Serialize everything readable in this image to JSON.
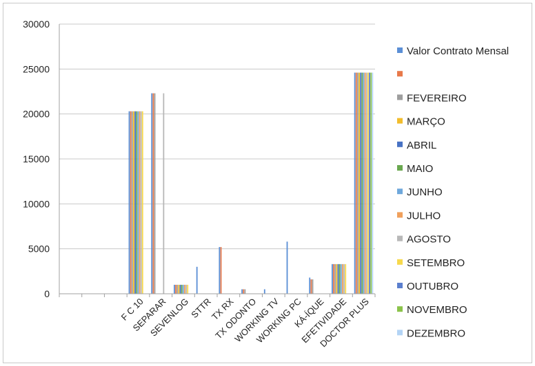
{
  "chart_data": {
    "type": "bar",
    "title": "",
    "xlabel": "",
    "ylabel": "",
    "ylim": [
      0,
      30000
    ],
    "yticks": [
      0,
      5000,
      10000,
      15000,
      20000,
      25000,
      30000
    ],
    "grid": true,
    "legend_position": "right",
    "categories": [
      "",
      "",
      "",
      "F C 10",
      "SEPARAR",
      "SEVENLOG",
      "STTR",
      "TX RX",
      "TX ODONTO",
      "WORKING TV",
      "WORKING PC",
      "KÁ-ÍQUE",
      "EFETIVIDADE",
      "DOCTOR PLUS"
    ],
    "series": [
      {
        "name": "Valor Contrato Mensal",
        "color": "#5b8fd6",
        "values": [
          0,
          0,
          0,
          20300,
          22300,
          1000,
          3000,
          5200,
          500,
          500,
          5800,
          1800,
          3300,
          24600
        ]
      },
      {
        "name": "",
        "color": "#e8794a",
        "values": [
          0,
          0,
          0,
          20300,
          22300,
          1000,
          0,
          5200,
          500,
          0,
          0,
          1600,
          3300,
          24600
        ]
      },
      {
        "name": "FEVEREIRO",
        "color": "#9e9e9e",
        "values": [
          0,
          0,
          0,
          20300,
          22300,
          1000,
          0,
          0,
          500,
          0,
          0,
          1600,
          3300,
          24600
        ]
      },
      {
        "name": "MARÇO",
        "color": "#f2bd2c",
        "values": [
          0,
          0,
          0,
          20300,
          0,
          1000,
          0,
          0,
          0,
          0,
          0,
          0,
          3300,
          24600
        ]
      },
      {
        "name": "ABRIL",
        "color": "#4872c4",
        "values": [
          0,
          0,
          0,
          20300,
          0,
          1000,
          0,
          0,
          0,
          0,
          0,
          0,
          3300,
          24600
        ]
      },
      {
        "name": "MAIO",
        "color": "#6aa84f",
        "values": [
          0,
          0,
          0,
          20300,
          0,
          1000,
          0,
          0,
          0,
          0,
          0,
          0,
          3300,
          24600
        ]
      },
      {
        "name": "JUNHO",
        "color": "#6fa8dc",
        "values": [
          0,
          0,
          0,
          20300,
          0,
          1000,
          0,
          0,
          0,
          0,
          0,
          0,
          3300,
          24600
        ]
      },
      {
        "name": "JULHO",
        "color": "#f0a05c",
        "values": [
          0,
          0,
          0,
          20300,
          0,
          1000,
          0,
          0,
          0,
          0,
          0,
          0,
          3300,
          24600
        ]
      },
      {
        "name": "AGOSTO",
        "color": "#b8b8b8",
        "values": [
          0,
          0,
          0,
          20300,
          22300,
          1000,
          0,
          0,
          0,
          0,
          0,
          0,
          3300,
          24600
        ]
      },
      {
        "name": "SETEMBRO",
        "color": "#f7d94c",
        "values": [
          0,
          0,
          0,
          20300,
          0,
          1000,
          0,
          0,
          0,
          0,
          0,
          0,
          3300,
          24600
        ]
      },
      {
        "name": "OUTUBRO",
        "color": "#5b7fce",
        "values": [
          0,
          0,
          0,
          0,
          0,
          0,
          0,
          0,
          0,
          0,
          0,
          0,
          0,
          24600
        ]
      },
      {
        "name": "NOVEMBRO",
        "color": "#8bc34a",
        "values": [
          0,
          0,
          0,
          0,
          0,
          0,
          0,
          0,
          0,
          0,
          0,
          0,
          0,
          24600
        ]
      },
      {
        "name": "DEZEMBRO",
        "color": "#b3d4f5",
        "values": [
          0,
          0,
          0,
          0,
          0,
          0,
          0,
          0,
          0,
          0,
          0,
          0,
          0,
          24600
        ]
      }
    ]
  }
}
